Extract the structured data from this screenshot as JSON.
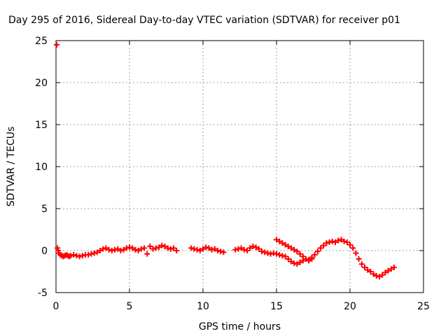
{
  "chart_data": {
    "type": "scatter",
    "title": "Day 295 of 2016, Sidereal Day-to-day VTEC variation (SDTVAR) for receiver p01",
    "xlabel": "GPS time / hours",
    "ylabel": "SDTVAR / TECUs",
    "xlim": [
      0,
      25
    ],
    "ylim": [
      -5,
      25
    ],
    "x_ticks": [
      0,
      5,
      10,
      15,
      20,
      25
    ],
    "y_ticks": [
      -5,
      0,
      5,
      10,
      15,
      20,
      25
    ],
    "grid": true,
    "legend": "none",
    "marker": "plus",
    "color": "#ff0000",
    "series": [
      {
        "x": [
          0.05,
          0.1,
          0.15,
          0.2,
          0.3,
          0.4,
          0.5,
          0.6,
          0.7,
          0.8,
          0.9,
          1.0,
          1.2,
          1.4,
          1.6,
          1.8,
          2.0,
          2.2,
          2.4,
          2.6,
          2.8,
          3.0,
          3.2,
          3.4,
          3.6,
          3.8,
          4.0,
          4.2,
          4.4,
          4.6,
          4.8,
          5.0,
          5.2,
          5.4,
          5.6,
          5.8,
          6.0,
          6.2,
          6.4,
          6.6,
          6.8,
          7.0,
          7.2,
          7.4,
          7.6,
          7.8,
          8.0,
          8.2,
          9.2,
          9.4,
          9.6,
          9.8,
          10.0,
          10.2,
          10.4,
          10.6,
          10.8,
          11.0,
          11.2,
          11.4,
          12.2,
          12.4,
          12.6,
          12.8,
          13.0,
          13.2,
          13.4,
          13.6,
          13.8,
          14.0,
          14.2,
          14.4,
          14.6,
          14.8,
          15.0,
          15.2,
          15.4,
          15.6,
          15.8,
          16.0,
          16.2,
          16.4,
          16.6,
          16.8,
          17.0,
          17.2,
          17.4,
          17.6,
          17.8,
          18.0,
          18.2,
          18.4,
          18.6,
          18.8,
          19.0,
          19.2,
          19.4,
          19.6,
          19.8,
          20.0,
          20.2,
          20.4,
          20.6,
          20.8,
          21.0,
          21.2,
          21.4,
          21.6,
          21.8,
          22.0,
          22.2,
          22.4,
          22.6,
          22.8,
          23.0,
          15.0,
          15.2,
          15.4,
          15.6,
          15.8,
          16.0,
          16.2,
          16.4,
          16.6,
          16.8,
          17.0,
          17.2,
          17.4
        ],
        "y": [
          24.5,
          0.3,
          0.0,
          -0.3,
          -0.5,
          -0.6,
          -0.7,
          -0.6,
          -0.5,
          -0.6,
          -0.7,
          -0.6,
          -0.5,
          -0.6,
          -0.7,
          -0.6,
          -0.5,
          -0.5,
          -0.4,
          -0.3,
          -0.2,
          0.0,
          0.2,
          0.3,
          0.1,
          0.0,
          0.1,
          0.2,
          0.0,
          0.1,
          0.3,
          0.4,
          0.3,
          0.1,
          0.0,
          0.2,
          0.3,
          -0.4,
          0.5,
          0.2,
          0.3,
          0.4,
          0.6,
          0.5,
          0.3,
          0.2,
          0.3,
          0.0,
          0.3,
          0.2,
          0.1,
          0.0,
          0.2,
          0.4,
          0.3,
          0.1,
          0.2,
          0.0,
          -0.1,
          -0.2,
          0.1,
          0.2,
          0.3,
          0.1,
          0.0,
          0.3,
          0.5,
          0.4,
          0.2,
          -0.1,
          -0.2,
          -0.3,
          -0.4,
          -0.3,
          -0.4,
          -0.5,
          -0.6,
          -0.7,
          -1.0,
          -1.3,
          -1.5,
          -1.6,
          -1.4,
          -1.2,
          -1.0,
          -1.1,
          -0.8,
          -0.5,
          -0.1,
          0.3,
          0.6,
          0.9,
          1.0,
          1.1,
          1.0,
          1.2,
          1.3,
          1.1,
          1.0,
          0.7,
          0.3,
          -0.3,
          -1.0,
          -1.6,
          -2.0,
          -2.3,
          -2.5,
          -2.8,
          -3.0,
          -3.1,
          -2.9,
          -2.6,
          -2.4,
          -2.2,
          -2.0,
          1.3,
          1.1,
          0.9,
          0.7,
          0.5,
          0.3,
          0.1,
          -0.1,
          -0.4,
          -0.7,
          -1.0,
          -1.2,
          -1.0
        ]
      }
    ]
  }
}
